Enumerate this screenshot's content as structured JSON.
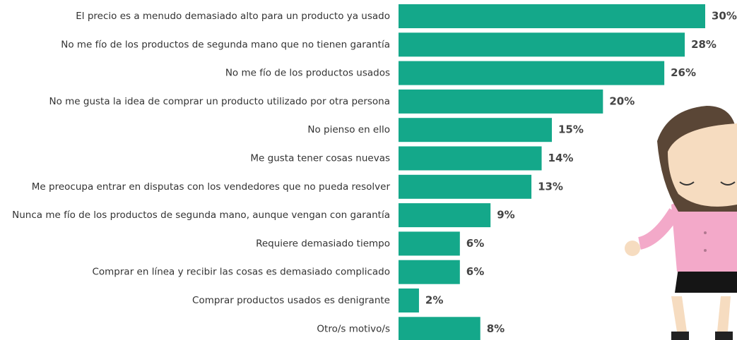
{
  "chart_data": {
    "type": "bar",
    "orientation": "horizontal",
    "color": "#14a88a",
    "categories": [
      "El precio es a menudo demasiado alto para un producto ya usado",
      "No me fío de los productos de segunda mano que no tienen garantía",
      "No me fío de los productos usados",
      "No me gusta la idea de comprar un producto utilizado por otra persona",
      "No pienso en ello",
      "Me gusta tener cosas nuevas",
      "Me preocupa entrar en disputas con los vendedores que no pueda resolver",
      "Nunca me fío de los productos de segunda mano, aunque vengan con garantía",
      "Requiere demasiado tiempo",
      "Comprar en línea y recibir las cosas es demasiado complicado",
      "Comprar productos usados es denigrante",
      "Otro/s motivo/s"
    ],
    "values": [
      30,
      28,
      26,
      20,
      15,
      14,
      13,
      9,
      6,
      6,
      2,
      8
    ],
    "value_labels": [
      "30%",
      "28%",
      "26%",
      "20%",
      "15%",
      "14%",
      "13%",
      "9%",
      "6%",
      "6%",
      "2%",
      "8%"
    ]
  }
}
